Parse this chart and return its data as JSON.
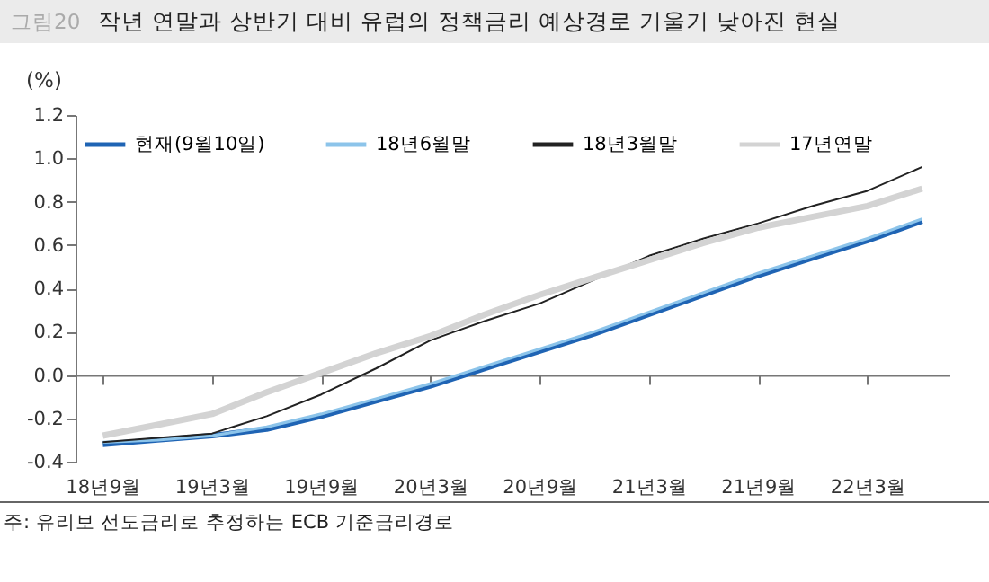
{
  "chart_data": {
    "type": "line",
    "title": "작년 연말과 상반기 대비 유럽의 정책금리 예상경로 기울기 낮아진 현실",
    "ylabel": "(%)",
    "annotations": [
      "그림20",
      "주: 유리보 선도금리로 추정하는 ECB 기준금리경로"
    ],
    "categories": [
      "18년9월",
      null,
      "19년3월",
      null,
      "19년9월",
      null,
      "20년3월",
      null,
      "20년9월",
      null,
      "21년3월",
      null,
      "21년9월",
      null,
      "22년3월",
      null
    ],
    "series": [
      {
        "name": "현재(9월10일)",
        "color": "#1f64b4",
        "values": [
          -0.32,
          -0.3,
          -0.28,
          -0.25,
          -0.19,
          -0.12,
          -0.05,
          0.03,
          0.11,
          0.19,
          0.28,
          0.37,
          0.46,
          0.54,
          0.62,
          0.71
        ]
      },
      {
        "name": "18년6월말",
        "color": "#8cc4ea",
        "values": [
          -0.31,
          -0.3,
          -0.28,
          -0.24,
          -0.18,
          -0.11,
          -0.04,
          0.04,
          0.12,
          0.2,
          0.29,
          0.38,
          0.47,
          0.55,
          0.63,
          0.72
        ]
      },
      {
        "name": "18년3월말",
        "color": "#222222",
        "values": [
          -0.31,
          -0.29,
          -0.27,
          -0.19,
          -0.09,
          0.03,
          0.16,
          0.25,
          0.33,
          0.44,
          0.55,
          0.63,
          0.7,
          0.78,
          0.85,
          0.96
        ]
      },
      {
        "name": "17년연말",
        "color": "#d3d3d3",
        "values": [
          -0.28,
          -0.23,
          -0.18,
          -0.08,
          0.01,
          0.1,
          0.18,
          0.28,
          0.37,
          0.45,
          0.53,
          0.61,
          0.68,
          0.73,
          0.78,
          0.86
        ]
      }
    ],
    "ylim": [
      -0.4,
      1.2
    ],
    "yticks": [
      -0.4,
      -0.2,
      {
        "value": 0,
        "label": "0.0"
      },
      0.2,
      0.4,
      0.6,
      0.8,
      {
        "value": 1,
        "label": "1.0"
      },
      1.2
    ],
    "legend": "top left"
  }
}
